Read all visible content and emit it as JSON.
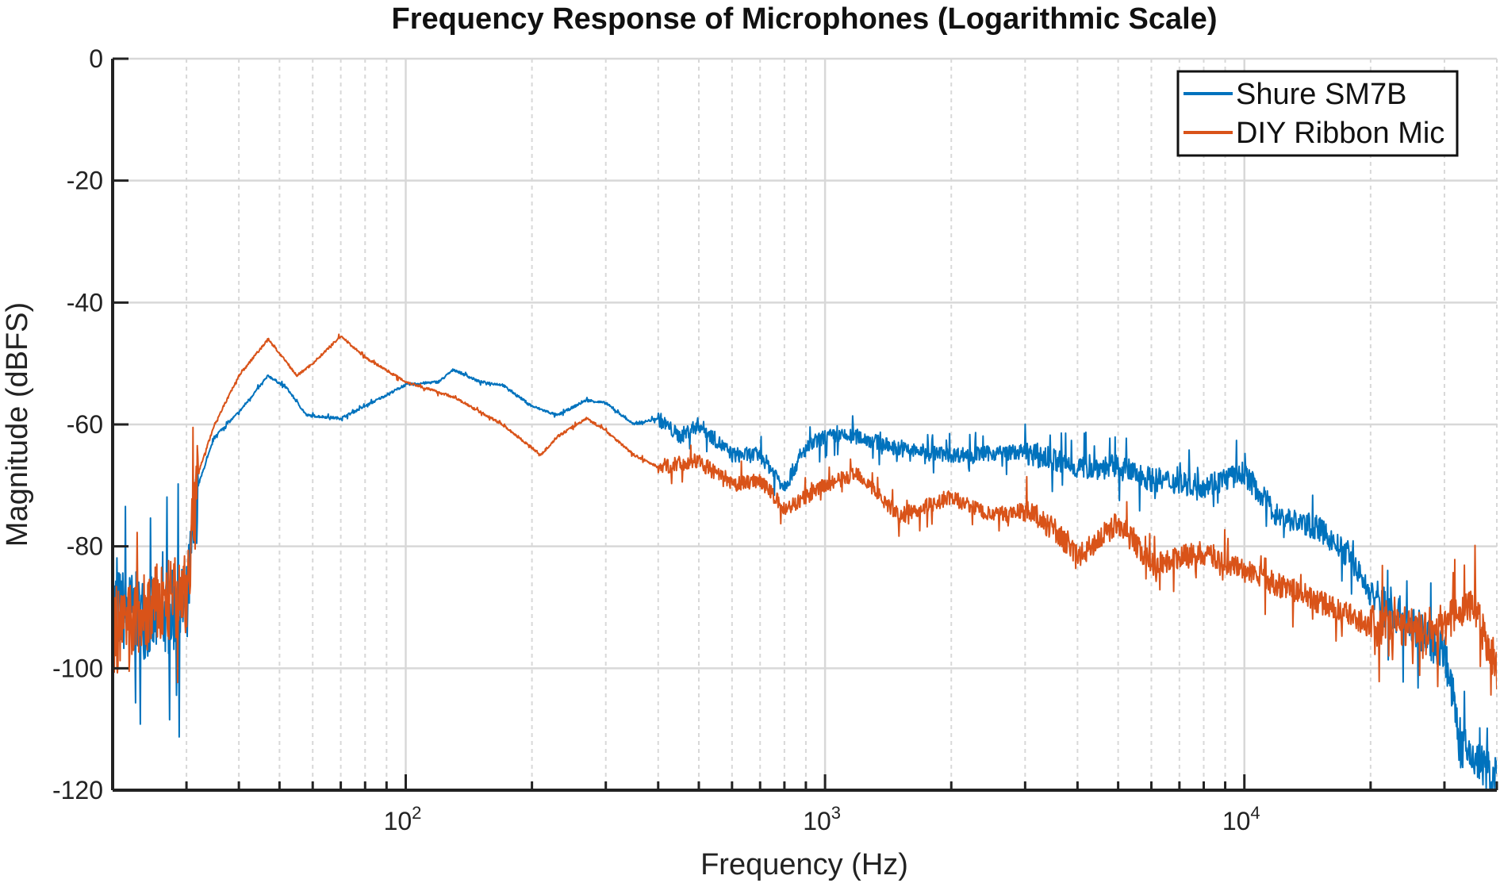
{
  "chart_data": {
    "type": "line",
    "title": "Frequency Response of Microphones (Logarithmic Scale)",
    "xlabel": "Frequency (Hz)",
    "ylabel": "Magnitude (dBFS)",
    "xscale": "log",
    "xlim": [
      20,
      40000
    ],
    "ylim": [
      -120,
      0
    ],
    "xticks": [
      {
        "value": 100,
        "base": "10",
        "exp": "2"
      },
      {
        "value": 1000,
        "base": "10",
        "exp": "3"
      },
      {
        "value": 10000,
        "base": "10",
        "exp": "4"
      }
    ],
    "yticks": [
      0,
      -20,
      -40,
      -60,
      -80,
      -100,
      -120
    ],
    "grid": true,
    "legend_position": "top-right",
    "series": [
      {
        "name": "Shure SM7B",
        "color": "#0072BD",
        "points": [
          [
            20,
            -90
          ],
          [
            25,
            -92
          ],
          [
            30,
            -90
          ],
          [
            32,
            -70
          ],
          [
            35,
            -62
          ],
          [
            40,
            -58
          ],
          [
            47,
            -52
          ],
          [
            52,
            -54
          ],
          [
            58,
            -58.5
          ],
          [
            70,
            -59
          ],
          [
            80,
            -57
          ],
          [
            100,
            -53.5
          ],
          [
            120,
            -53
          ],
          [
            130,
            -51
          ],
          [
            150,
            -53
          ],
          [
            170,
            -53.5
          ],
          [
            200,
            -57
          ],
          [
            230,
            -58.5
          ],
          [
            270,
            -56
          ],
          [
            300,
            -56.5
          ],
          [
            350,
            -60
          ],
          [
            400,
            -59
          ],
          [
            450,
            -62
          ],
          [
            500,
            -60
          ],
          [
            600,
            -65
          ],
          [
            700,
            -65
          ],
          [
            800,
            -70
          ],
          [
            900,
            -64
          ],
          [
            1000,
            -62
          ],
          [
            1200,
            -62
          ],
          [
            1500,
            -64
          ],
          [
            2000,
            -65
          ],
          [
            3000,
            -64.5
          ],
          [
            4000,
            -67
          ],
          [
            5000,
            -67
          ],
          [
            6000,
            -69
          ],
          [
            8000,
            -70
          ],
          [
            10000,
            -68
          ],
          [
            12000,
            -75
          ],
          [
            15000,
            -77
          ],
          [
            18000,
            -82
          ],
          [
            20000,
            -88
          ],
          [
            25000,
            -93
          ],
          [
            30000,
            -97
          ],
          [
            33000,
            -113
          ],
          [
            40000,
            -118
          ]
        ]
      },
      {
        "name": "DIY Ribbon Mic",
        "color": "#D95319",
        "points": [
          [
            20,
            -95
          ],
          [
            25,
            -90
          ],
          [
            30,
            -88
          ],
          [
            32,
            -68
          ],
          [
            35,
            -60
          ],
          [
            40,
            -52
          ],
          [
            47,
            -46
          ],
          [
            55,
            -52
          ],
          [
            60,
            -50
          ],
          [
            70,
            -45.5
          ],
          [
            80,
            -49
          ],
          [
            100,
            -53
          ],
          [
            130,
            -55.5
          ],
          [
            170,
            -60
          ],
          [
            210,
            -65
          ],
          [
            230,
            -62
          ],
          [
            270,
            -59
          ],
          [
            300,
            -61
          ],
          [
            350,
            -65
          ],
          [
            400,
            -67
          ],
          [
            500,
            -66
          ],
          [
            600,
            -70
          ],
          [
            700,
            -69
          ],
          [
            800,
            -74
          ],
          [
            1000,
            -70
          ],
          [
            1200,
            -68
          ],
          [
            1500,
            -75
          ],
          [
            2000,
            -72
          ],
          [
            2500,
            -75
          ],
          [
            3000,
            -74
          ],
          [
            3500,
            -77
          ],
          [
            4000,
            -82
          ],
          [
            5000,
            -76
          ],
          [
            6000,
            -83
          ],
          [
            8000,
            -81
          ],
          [
            10000,
            -84
          ],
          [
            15000,
            -89
          ],
          [
            20000,
            -93
          ],
          [
            30000,
            -93
          ],
          [
            35000,
            -89
          ],
          [
            40000,
            -100
          ]
        ]
      }
    ]
  }
}
